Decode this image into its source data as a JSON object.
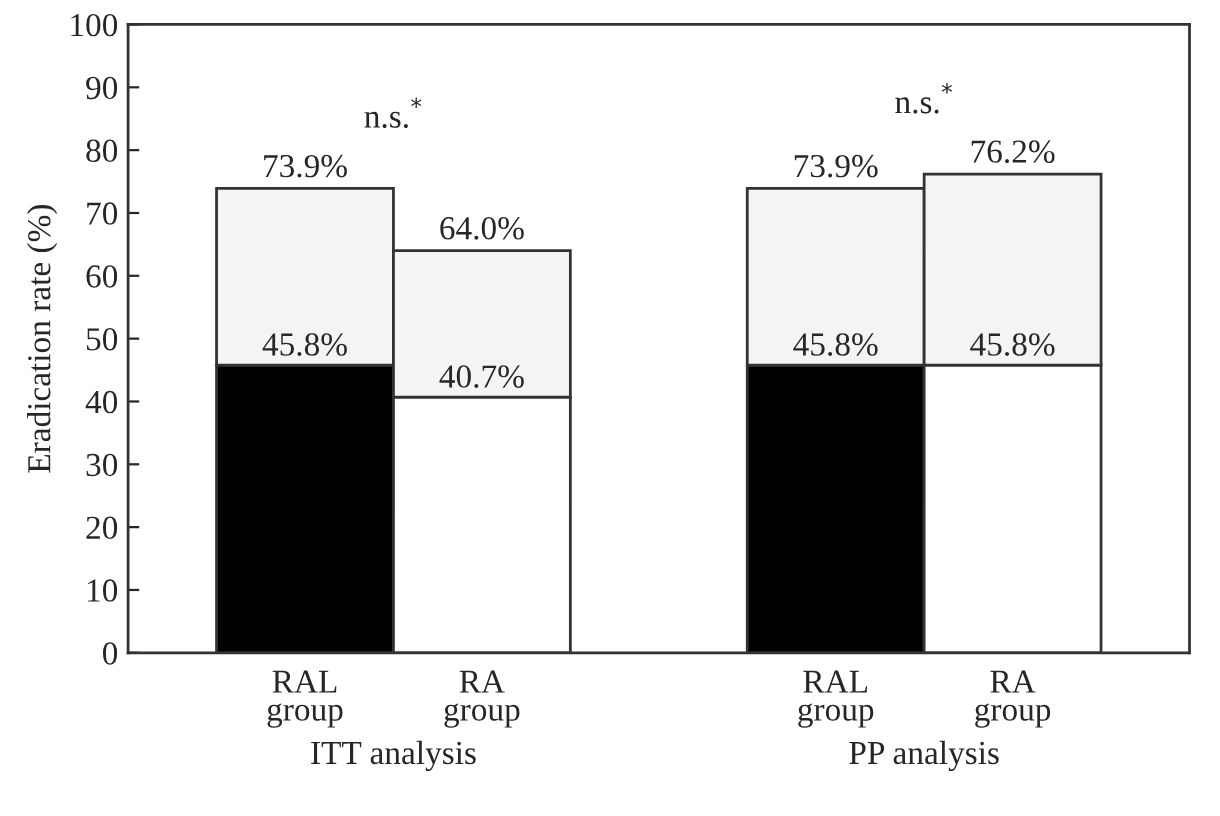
{
  "chart_data": {
    "type": "bar",
    "stacked": true,
    "ylabel": "Eradication rate (%)",
    "categories": [
      "RAL\ngroup",
      "RA\ngroup",
      null,
      "RAL\ngroup",
      "RA\ngroup"
    ],
    "series": [
      {
        "colors": [
          "#000000",
          "#ffffff",
          null,
          "#000000",
          "#ffffff"
        ],
        "values": [
          45.8,
          40.7,
          null,
          45.8,
          45.8
        ],
        "value_labels": [
          "45.8%",
          "40.7%",
          null,
          "45.8%",
          "45.8%"
        ]
      },
      {
        "color": "#f4f4f4",
        "values": [
          28.1,
          23.3,
          null,
          28.1,
          30.4
        ]
      }
    ],
    "totals": [
      "73.9%",
      "64.0%",
      null,
      "73.9%",
      "76.2%"
    ],
    "ylim": [
      0,
      100
    ],
    "yticks": [
      0,
      10,
      20,
      30,
      40,
      50,
      60,
      70,
      80,
      90,
      100
    ],
    "annotations": [
      "n.s.$^{*}$",
      "n.s.$^{*}$",
      "ITT analysis",
      "PP analysis"
    ],
    "legend": false,
    "grid": false
  }
}
